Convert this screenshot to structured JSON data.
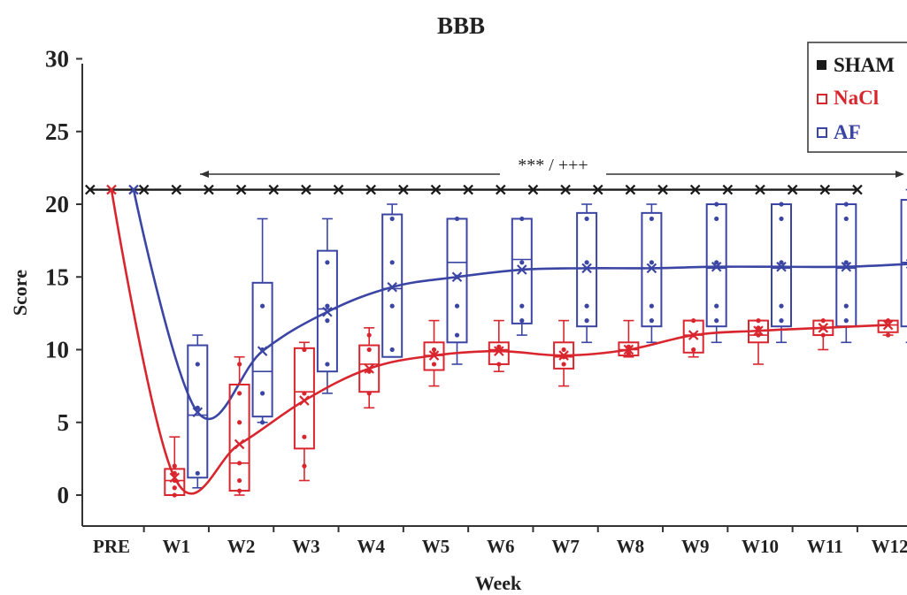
{
  "chart_data": {
    "type": "box",
    "title": "BBB",
    "xlabel": "Week",
    "ylabel": "Score",
    "ylim": [
      0,
      30
    ],
    "yticks": [
      "0",
      "5",
      "10",
      "15",
      "20",
      "25",
      "30"
    ],
    "categories": [
      "PRE",
      "W1",
      "W2",
      "W3",
      "W4",
      "W5",
      "W6",
      "W7",
      "W8",
      "W9",
      "W10",
      "W11",
      "W12"
    ],
    "grid": false,
    "legend_position": "top-right",
    "significance_label": "*** / +++",
    "series": [
      {
        "name": "SHAM",
        "color": "#1a1a1a",
        "marker": "filled-square",
        "x": [
          -0.33,
          0.5,
          1,
          1.5,
          2,
          2.5,
          3,
          3.5,
          4,
          4.5,
          5,
          5.5,
          6,
          6.5,
          7,
          7.5,
          8,
          8.5,
          9,
          9.5,
          10,
          10.5,
          11,
          11.5
        ],
        "mean": [
          21,
          21,
          21,
          21,
          21,
          21,
          21,
          21,
          21,
          21,
          21,
          21,
          21,
          21,
          21,
          21,
          21,
          21,
          21,
          21,
          21,
          21,
          21,
          21
        ]
      },
      {
        "name": "NaCl",
        "color": "#d9262e",
        "marker": "open-square",
        "mean": [
          21,
          1.2,
          3.5,
          6.5,
          8.7,
          9.6,
          9.9,
          9.6,
          10,
          11,
          11.3,
          11.5,
          11.7
        ],
        "boxes": [
          null,
          {
            "whisker_low": 0,
            "q1": 0,
            "median": 1,
            "q3": 1.8,
            "whisker_high": 4,
            "points": [
              0,
              0.5,
              1,
              1.5,
              2
            ]
          },
          {
            "whisker_low": 0,
            "q1": 0.3,
            "median": 2.2,
            "q3": 7.6,
            "whisker_high": 9.5,
            "points": [
              0.3,
              1,
              2.2,
              5,
              7,
              9
            ]
          },
          {
            "whisker_low": 1,
            "q1": 3.2,
            "median": 7.1,
            "q3": 10.1,
            "whisker_high": 10.5,
            "points": [
              2,
              4,
              7,
              10
            ]
          },
          {
            "whisker_low": 6,
            "q1": 7.1,
            "median": 9,
            "q3": 10.3,
            "whisker_high": 11.5,
            "points": [
              7,
              8.5,
              10,
              11
            ]
          },
          {
            "whisker_low": 7.5,
            "q1": 8.6,
            "median": 9.6,
            "q3": 10.5,
            "whisker_high": 12,
            "points": [
              9,
              9.7,
              10
            ]
          },
          {
            "whisker_low": 8.5,
            "q1": 9,
            "median": 10,
            "q3": 10.5,
            "whisker_high": 12,
            "points": [
              9,
              10,
              10.2
            ]
          },
          {
            "whisker_low": 7.5,
            "q1": 8.7,
            "median": 9.5,
            "q3": 10.5,
            "whisker_high": 12,
            "points": [
              9,
              9.5,
              10
            ]
          },
          {
            "whisker_low": 9.5,
            "q1": 9.6,
            "median": 10,
            "q3": 10.5,
            "whisker_high": 12,
            "points": [
              9.7,
              10,
              10.2
            ]
          },
          {
            "whisker_low": 9.5,
            "q1": 9.8,
            "median": 11,
            "q3": 12,
            "whisker_high": 12,
            "points": [
              10,
              11,
              12
            ]
          },
          {
            "whisker_low": 9,
            "q1": 10.5,
            "median": 11,
            "q3": 12,
            "whisker_high": 12,
            "points": [
              11,
              11.5,
              12
            ]
          },
          {
            "whisker_low": 10,
            "q1": 11,
            "median": 11.5,
            "q3": 12,
            "whisker_high": 12,
            "points": [
              11,
              11.5,
              12
            ]
          },
          {
            "whisker_low": 11,
            "q1": 11.2,
            "median": 11.7,
            "q3": 12,
            "whisker_high": 12,
            "points": [
              11,
              12
            ]
          }
        ]
      },
      {
        "name": "AF",
        "color": "#3b45a3",
        "marker": "open-square",
        "mean": [
          21,
          5.7,
          9.9,
          12.6,
          14.3,
          15,
          15.5,
          15.6,
          15.6,
          15.7,
          15.7,
          15.7,
          15.9
        ],
        "boxes": [
          null,
          {
            "whisker_low": 0.5,
            "q1": 1.2,
            "median": 5.5,
            "q3": 10.3,
            "whisker_high": 11,
            "points": [
              1.5,
              6,
              9
            ]
          },
          {
            "whisker_low": 5,
            "q1": 5.4,
            "median": 8.5,
            "q3": 14.6,
            "whisker_high": 19,
            "points": [
              5,
              7,
              10,
              13
            ]
          },
          {
            "whisker_low": 7,
            "q1": 8.5,
            "median": 12.8,
            "q3": 16.8,
            "whisker_high": 19,
            "points": [
              9,
              12,
              13,
              16
            ]
          },
          {
            "whisker_low": 9.5,
            "q1": 9.5,
            "median": 14.2,
            "q3": 19.3,
            "whisker_high": 20,
            "points": [
              10,
              13,
              16,
              19
            ]
          },
          {
            "whisker_low": 9,
            "q1": 10.5,
            "median": 16,
            "q3": 19,
            "whisker_high": 19,
            "points": [
              11,
              13,
              15,
              19
            ]
          },
          {
            "whisker_low": 11,
            "q1": 11.8,
            "median": 16.2,
            "q3": 19,
            "whisker_high": 19,
            "points": [
              12,
              13,
              16,
              19
            ]
          },
          {
            "whisker_low": 10.5,
            "q1": 11.6,
            "median": 15.6,
            "q3": 19.4,
            "whisker_high": 20,
            "points": [
              12,
              13,
              16,
              19
            ]
          },
          {
            "whisker_low": 10.5,
            "q1": 11.6,
            "median": 15.6,
            "q3": 19.4,
            "whisker_high": 20,
            "points": [
              12,
              13,
              16,
              19
            ]
          },
          {
            "whisker_low": 10.5,
            "q1": 11.6,
            "median": 15.6,
            "q3": 20,
            "whisker_high": 20,
            "points": [
              12,
              13,
              16,
              19,
              20
            ]
          },
          {
            "whisker_low": 10.5,
            "q1": 11.6,
            "median": 15.6,
            "q3": 20,
            "whisker_high": 20,
            "points": [
              12,
              13,
              16,
              19,
              20
            ]
          },
          {
            "whisker_low": 10.5,
            "q1": 11.6,
            "median": 15.6,
            "q3": 20,
            "whisker_high": 20,
            "points": [
              12,
              13,
              16,
              19,
              20
            ]
          },
          {
            "whisker_low": 10.5,
            "q1": 11.6,
            "median": 16,
            "q3": 20.3,
            "whisker_high": 21,
            "points": [
              12,
              13,
              16,
              19,
              20
            ]
          }
        ]
      }
    ]
  }
}
